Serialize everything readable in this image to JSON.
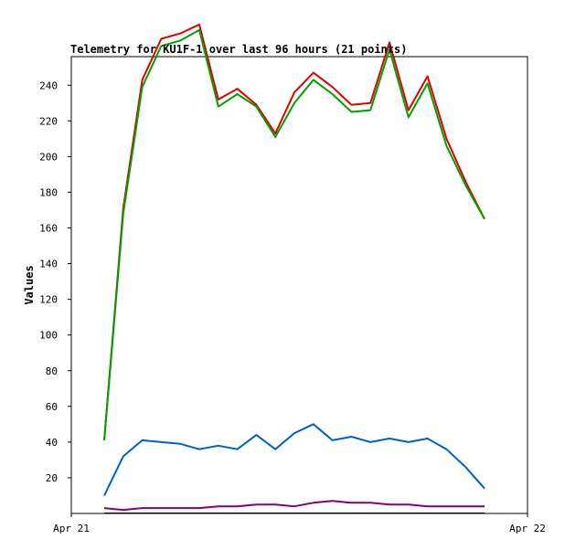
{
  "chart_data": {
    "type": "line",
    "title": "Telemetry for KU1F-1 over last 96 hours (21 points)",
    "xlabel": "",
    "ylabel": "Values",
    "x_tick_labels": [
      "Apr 21",
      "Apr 22"
    ],
    "ylim": [
      0,
      256
    ],
    "y_ticks": [
      20,
      40,
      60,
      80,
      100,
      120,
      140,
      160,
      180,
      200,
      220,
      240
    ],
    "x_points": 21,
    "grid": false,
    "legend": "none",
    "series": [
      {
        "color": "#e00000",
        "values": [
          41,
          171,
          243,
          266,
          269,
          274,
          232,
          238,
          229,
          213,
          236,
          247,
          239,
          229,
          230,
          264,
          226,
          245,
          210,
          186,
          165
        ]
      },
      {
        "color": "#00a000",
        "values": [
          41,
          168,
          239,
          262,
          265,
          271,
          228,
          235,
          228,
          211,
          230,
          243,
          235,
          225,
          226,
          260,
          222,
          241,
          206,
          184,
          165
        ]
      },
      {
        "color": "#0060c0",
        "values": [
          10,
          32,
          41,
          40,
          39,
          36,
          38,
          36,
          44,
          36,
          45,
          50,
          41,
          43,
          40,
          42,
          40,
          42,
          36,
          26,
          14
        ]
      },
      {
        "color": "#800080",
        "values": [
          3,
          2,
          3,
          3,
          3,
          3,
          4,
          4,
          5,
          5,
          4,
          6,
          7,
          6,
          6,
          5,
          5,
          4,
          4,
          4,
          4
        ]
      },
      {
        "color": "#000000",
        "values": [
          0,
          0,
          0,
          0,
          0,
          0,
          0,
          0,
          0,
          0,
          0,
          0,
          0,
          0,
          0,
          0,
          0,
          0,
          0,
          0,
          0
        ]
      }
    ]
  }
}
